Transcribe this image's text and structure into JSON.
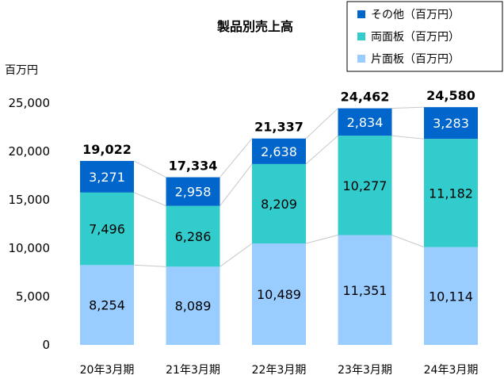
{
  "chart_data": {
    "type": "bar",
    "stacked": true,
    "title": "製品別売上高",
    "ylabel": "百万円",
    "categories": [
      "20年3月期",
      "21年3月期",
      "22年3月期",
      "23年3月期",
      "24年3月期"
    ],
    "series": [
      {
        "name": "片面板（百万円）",
        "color": "#99CCFF",
        "label_color": "#000000",
        "values": [
          8254,
          8089,
          10489,
          11351,
          10114
        ]
      },
      {
        "name": "両面板（百万円）",
        "color": "#33CCCC",
        "label_color": "#000000",
        "values": [
          7496,
          6286,
          8209,
          10277,
          11182
        ]
      },
      {
        "name": "その他（百万円）",
        "color": "#0066CC",
        "label_color": "#ffffff",
        "values": [
          3271,
          2958,
          2638,
          2834,
          3283
        ]
      }
    ],
    "totals": [
      19022,
      17334,
      21337,
      24462,
      24580
    ],
    "ylim": [
      0,
      25000
    ],
    "yticks": [
      0,
      5000,
      10000,
      15000,
      20000,
      25000
    ],
    "ytick_labels": [
      "0",
      "5,000",
      "10,000",
      "15,000",
      "20,000",
      "25,000"
    ],
    "legend_position": "top-right",
    "series_lines": true,
    "grid": false
  }
}
